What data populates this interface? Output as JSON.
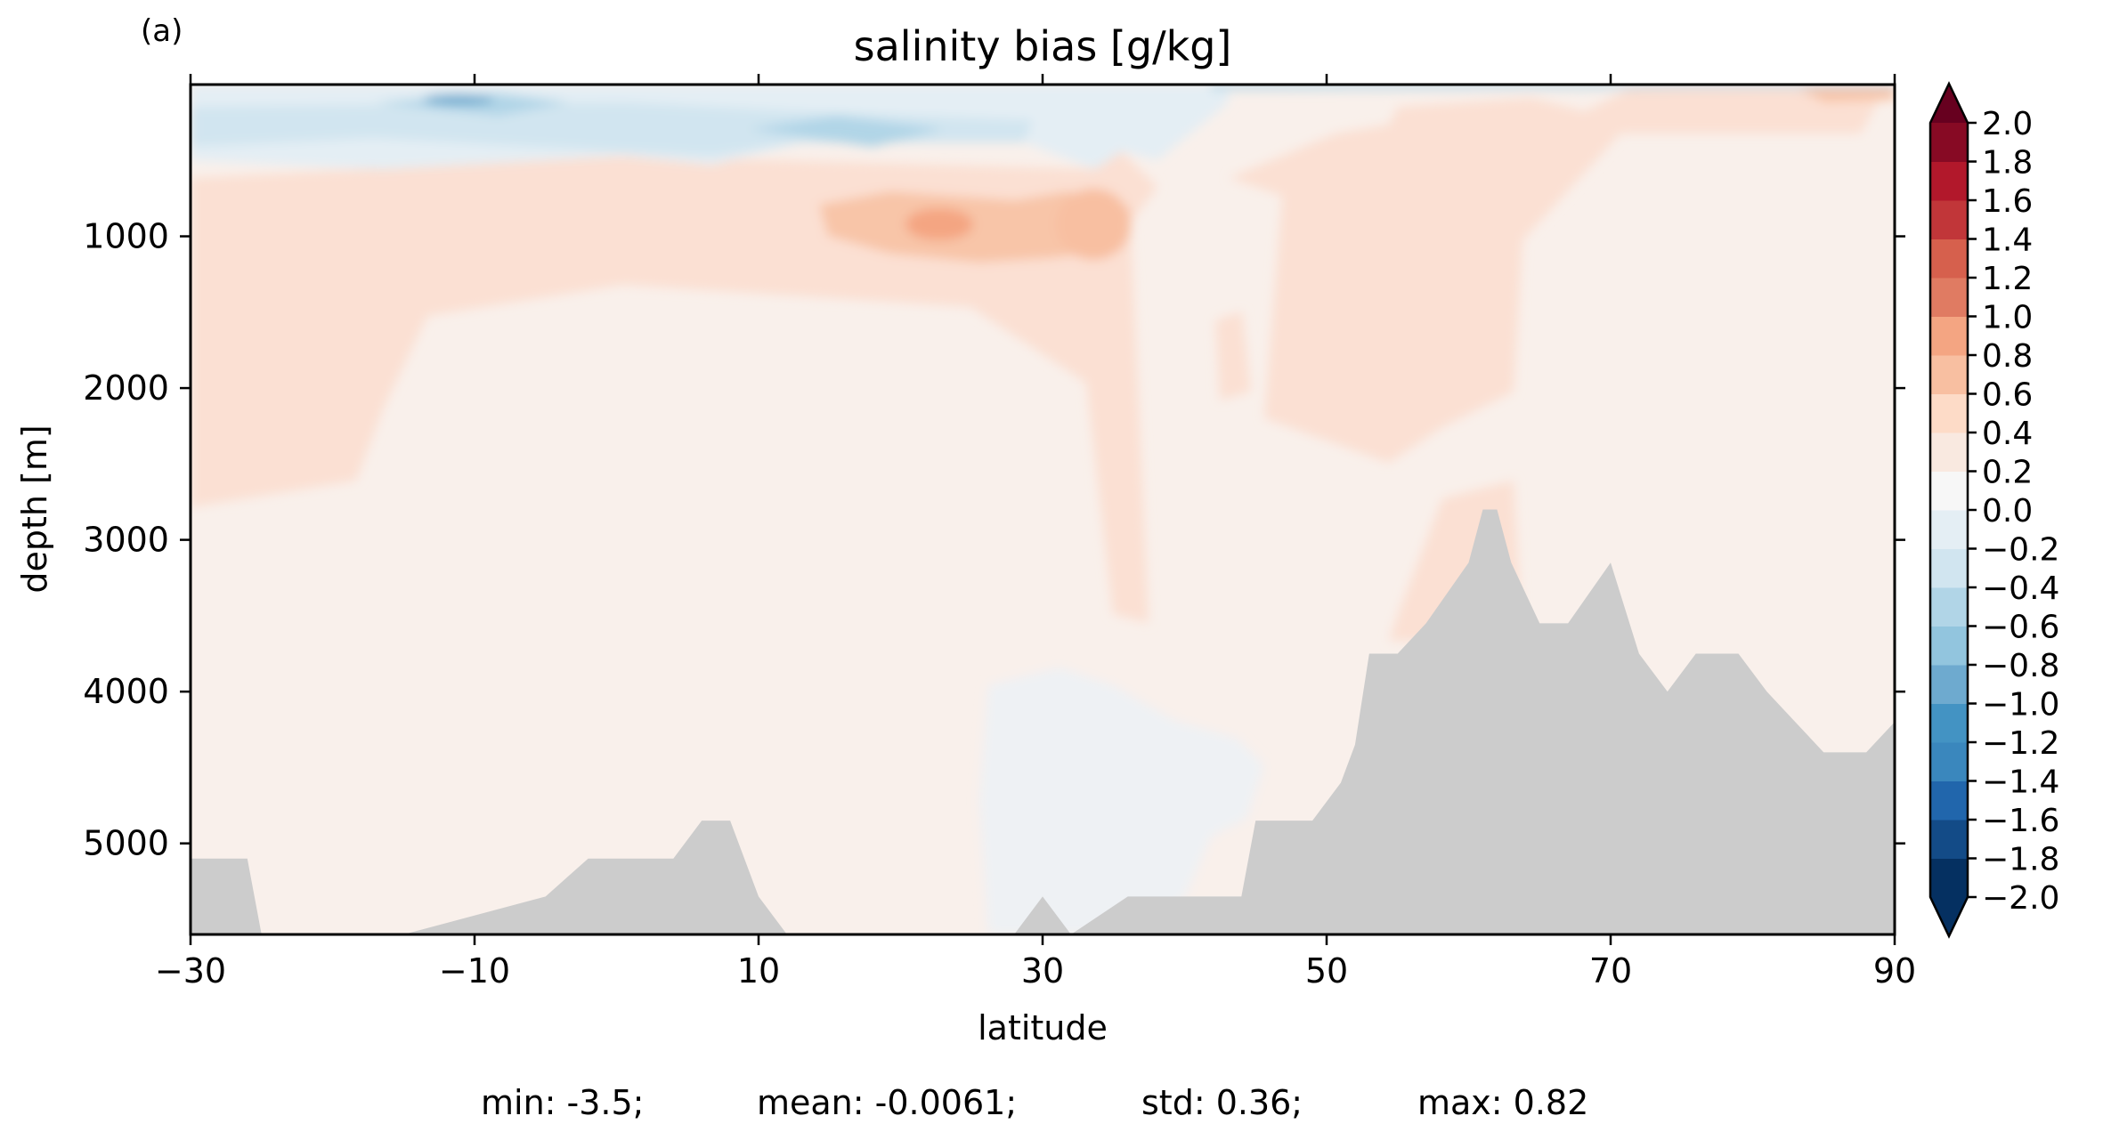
{
  "panel_label": "(a)",
  "stats": {
    "min": "min: -3.5;",
    "mean": "mean: -0.0061;",
    "std": "std: 0.36;",
    "max": "max: 0.82"
  },
  "colors": {
    "bathymetry": "#cccccc",
    "levels": [
      "#053061",
      "#134b87",
      "#2166ac",
      "#3a87bd",
      "#4393c3",
      "#6eaacf",
      "#92c5de",
      "#b1d5e7",
      "#d1e5f0",
      "#e4eef4",
      "#f7f7f7",
      "#f9e9e0",
      "#fddbc7",
      "#f8bfa1",
      "#f4a582",
      "#e07b62",
      "#d6604d",
      "#c13639",
      "#b2182b",
      "#870a24",
      "#67001f"
    ]
  },
  "chart_data": {
    "type": "heatmap",
    "title": "salinity bias [g/kg]",
    "xlabel": "latitude",
    "ylabel": "depth [m]",
    "xlim": [
      -30,
      90
    ],
    "ylim": [
      5600,
      0
    ],
    "y_inverted": true,
    "xticks": [
      -30,
      -10,
      10,
      30,
      50,
      70,
      90
    ],
    "xtick_labels": [
      "−30",
      "−10",
      "10",
      "30",
      "50",
      "70",
      "90"
    ],
    "yticks": [
      1000,
      2000,
      3000,
      4000,
      5000
    ],
    "ytick_labels": [
      "1000",
      "2000",
      "3000",
      "4000",
      "5000"
    ],
    "colorbar": {
      "levels": [
        -2.0,
        -1.8,
        -1.6,
        -1.4,
        -1.2,
        -1.0,
        -0.8,
        -0.6,
        -0.4,
        -0.2,
        0.0,
        0.2,
        0.4,
        0.6,
        0.8,
        1.0,
        1.2,
        1.4,
        1.6,
        1.8,
        2.0
      ],
      "tick_labels": [
        "−2.0",
        "−1.8",
        "−1.6",
        "−1.4",
        "−1.2",
        "−1.0",
        "−0.8",
        "−0.6",
        "−0.4",
        "−0.2",
        "0.0",
        "0.2",
        "0.4",
        "0.6",
        "0.8",
        "1.0",
        "1.2",
        "1.4",
        "1.6",
        "1.8",
        "2.0"
      ],
      "extend": "both",
      "cmap": "RdBu_r"
    },
    "features": [
      {
        "name": "near-surface fresh bias",
        "lat_range": [
          -30,
          35
        ],
        "depth_range": [
          0,
          550
        ],
        "value": -0.4
      },
      {
        "name": "surface minimum",
        "lat": -12,
        "depth": 100,
        "value": -1.2
      },
      {
        "name": "intermediate salty tongue",
        "lat_range": [
          -30,
          40
        ],
        "depth_range": [
          600,
          1300
        ],
        "value": 0.3
      },
      {
        "name": "salty core",
        "lat": 23,
        "depth": 950,
        "value": 0.6
      },
      {
        "name": "salty core",
        "lat": 36,
        "depth": 900,
        "value": 0.5
      },
      {
        "name": "high-latitude salty column",
        "lat_range": [
          50,
          62
        ],
        "depth_range": [
          200,
          2200
        ],
        "value": 0.3
      },
      {
        "name": "deep weak fresh bias",
        "lat_range": [
          26,
          46
        ],
        "depth_range": [
          3900,
          5600
        ],
        "value": -0.1
      },
      {
        "name": "interior background",
        "lat_range": [
          -30,
          90
        ],
        "depth_range": [
          1500,
          5600
        ],
        "value": 0.1
      }
    ],
    "bathymetry": {
      "lat": [
        -30,
        -26,
        -25,
        -24,
        -22,
        -20,
        -15,
        -5,
        -2,
        2,
        4,
        6,
        8,
        10,
        12,
        16,
        28,
        30,
        32,
        36,
        44,
        45,
        47,
        48,
        49,
        51,
        52,
        53,
        54,
        55,
        57,
        60,
        61,
        62,
        63,
        65,
        67,
        70,
        72,
        74,
        76,
        78,
        79,
        81,
        83,
        85,
        88,
        90
      ],
      "depth": [
        5100,
        5100,
        5600,
        5600,
        5600,
        5600,
        5600,
        5350,
        5100,
        5100,
        5100,
        4850,
        4850,
        5350,
        5600,
        5600,
        5600,
        5350,
        5600,
        5350,
        5350,
        4850,
        4850,
        4850,
        4850,
        4600,
        4350,
        3750,
        3750,
        3750,
        3550,
        3150,
        2800,
        2800,
        3150,
        3550,
        3550,
        3150,
        3750,
        4000,
        3750,
        3750,
        3750,
        4000,
        4200,
        4400,
        4400,
        4200
      ]
    }
  }
}
